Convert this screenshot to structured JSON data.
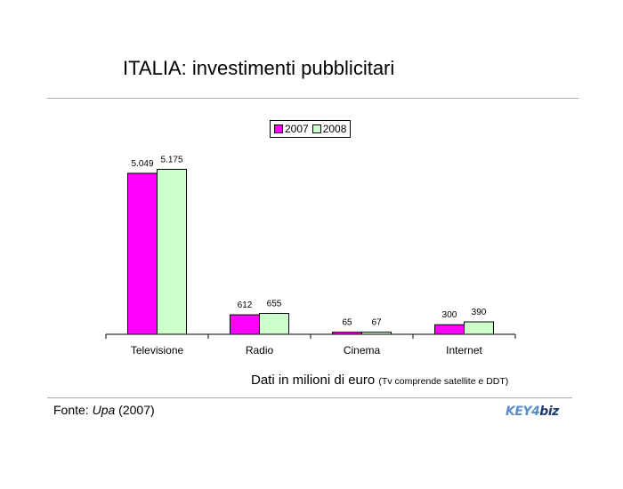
{
  "title": "ITALIA: investimenti pubblicitari",
  "note_main": "Dati in milioni di euro",
  "note_small": "(Tv comprende satellite e DDT)",
  "source_prefix": "Fonte:",
  "source_name": "Upa",
  "source_year": "(2007)",
  "logo": {
    "part1": "KEY4",
    "part2": "biz"
  },
  "colors": {
    "series_2007": "#ff00ff",
    "series_2008": "#ccffcc"
  },
  "chart_data": {
    "type": "bar",
    "categories": [
      "Televisione",
      "Radio",
      "Cinema",
      "Internet"
    ],
    "series": [
      {
        "name": "2007",
        "values": [
          5049,
          612,
          65,
          300
        ],
        "labels": [
          "5.049",
          "612",
          "65",
          "300"
        ]
      },
      {
        "name": "2008",
        "values": [
          5175,
          655,
          67,
          390
        ],
        "labels": [
          "5.175",
          "655",
          "67",
          "390"
        ]
      }
    ],
    "ylim": [
      0,
      5800
    ],
    "legend": "top-center",
    "grid": false
  }
}
